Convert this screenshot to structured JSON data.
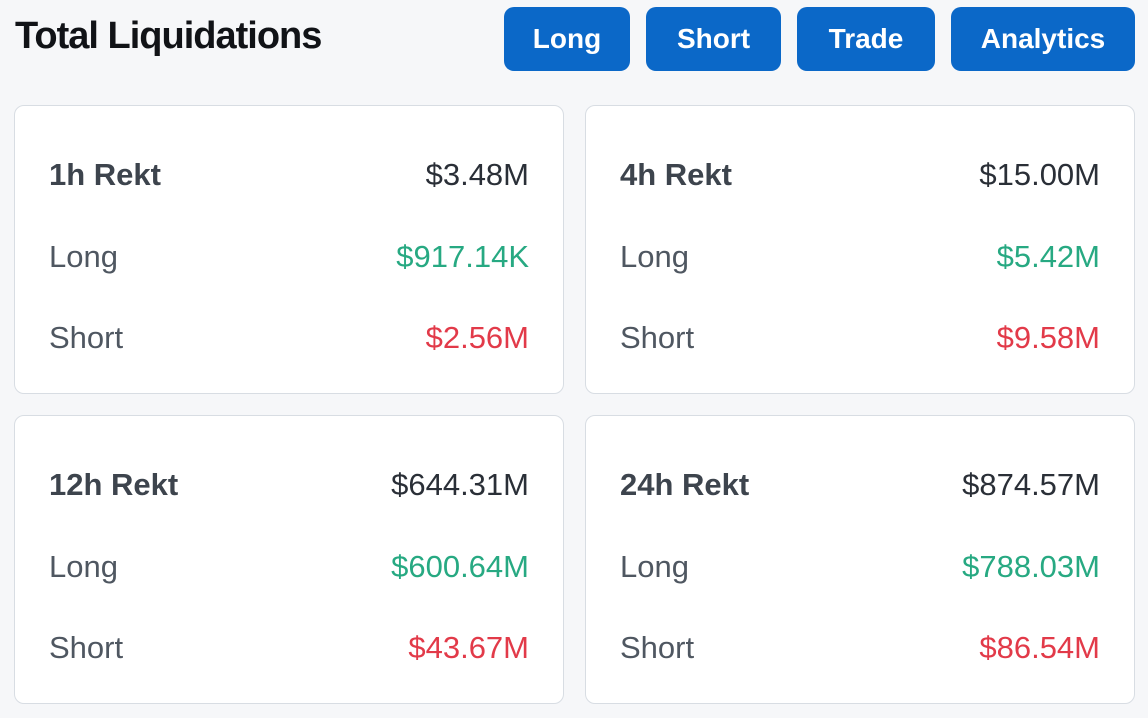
{
  "header": {
    "title": "Total Liquidations",
    "buttons": {
      "long": "Long",
      "short": "Short",
      "trade": "Trade",
      "analytics": "Analytics"
    }
  },
  "colors": {
    "accent": "#0b68c8",
    "long_value": "#27a982",
    "short_value": "#e23a49"
  },
  "cards": {
    "h1": {
      "title": "1h Rekt",
      "total": "$3.48M",
      "long_label": "Long",
      "long_value": "$917.14K",
      "short_label": "Short",
      "short_value": "$2.56M"
    },
    "h4": {
      "title": "4h Rekt",
      "total": "$15.00M",
      "long_label": "Long",
      "long_value": "$5.42M",
      "short_label": "Short",
      "short_value": "$9.58M"
    },
    "h12": {
      "title": "12h Rekt",
      "total": "$644.31M",
      "long_label": "Long",
      "long_value": "$600.64M",
      "short_label": "Short",
      "short_value": "$43.67M"
    },
    "h24": {
      "title": "24h Rekt",
      "total": "$874.57M",
      "long_label": "Long",
      "long_value": "$788.03M",
      "short_label": "Short",
      "short_value": "$86.54M"
    }
  }
}
